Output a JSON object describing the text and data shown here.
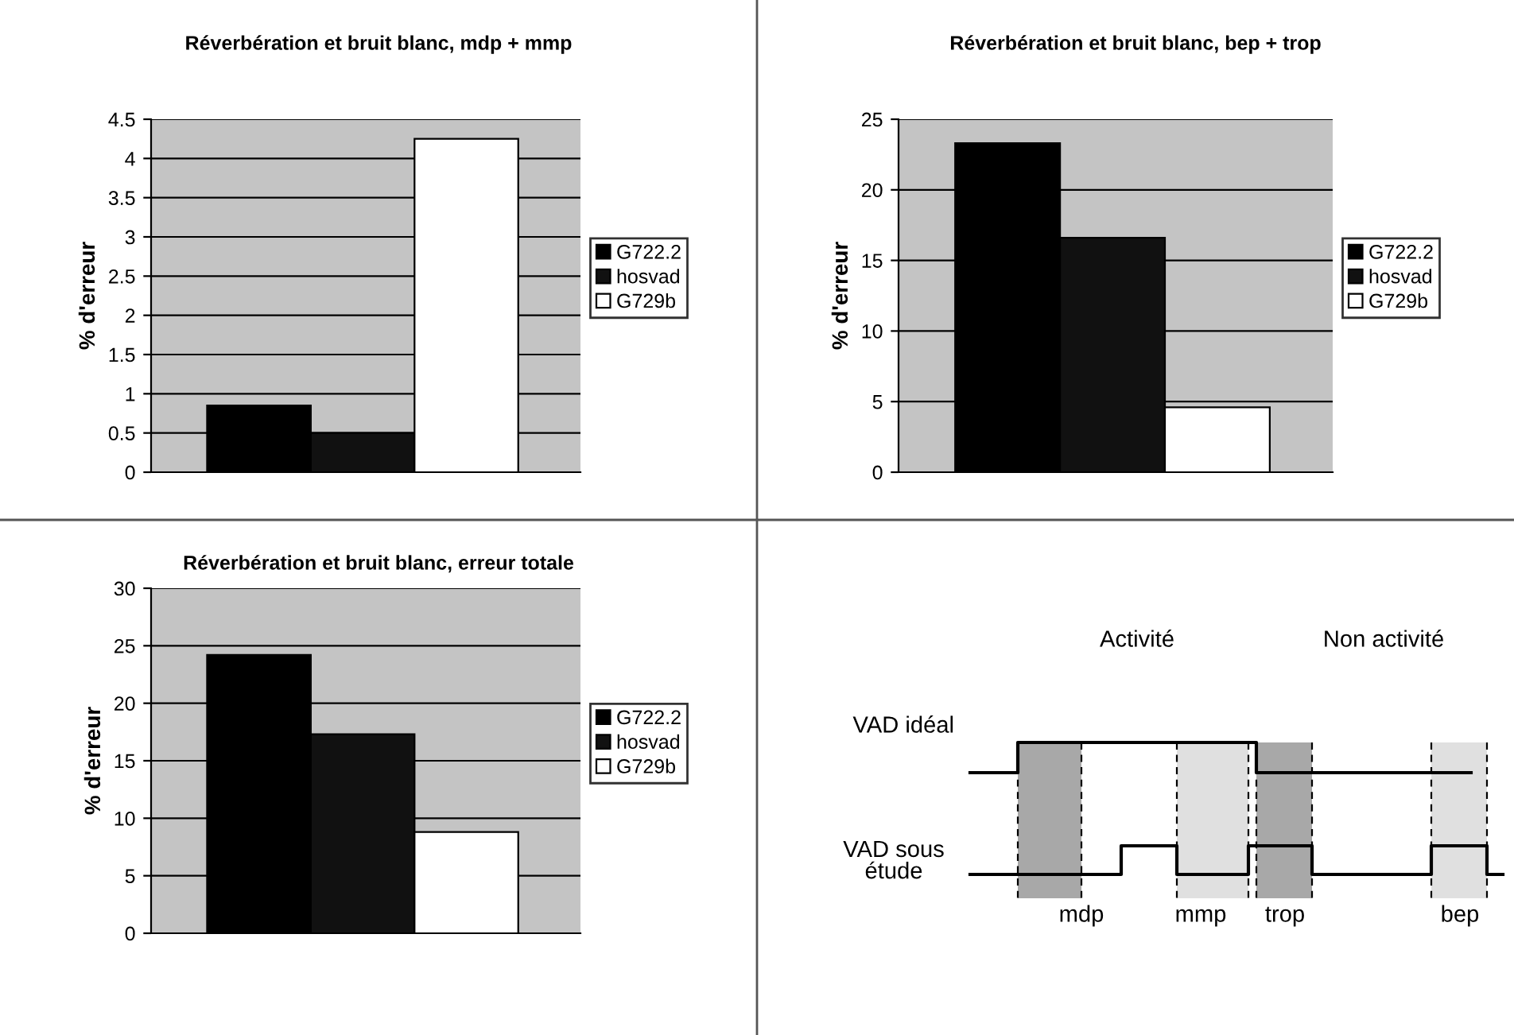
{
  "chart_data": [
    {
      "type": "bar",
      "title": "Réverbération et bruit blanc, mdp + mmp",
      "ylabel": "% d'erreur",
      "categories": [
        null
      ],
      "ylim": [
        0,
        4.5
      ],
      "yticks": [
        0,
        0.5,
        1,
        1.5,
        2,
        2.5,
        3,
        3.5,
        4,
        4.5
      ],
      "grid": "y",
      "legend": "right",
      "series": [
        {
          "name": "G722.2",
          "color": "#000000",
          "values": [
            0.85
          ]
        },
        {
          "name": "hosvad",
          "color": "#111111",
          "values": [
            0.5
          ]
        },
        {
          "name": "G729b",
          "color": "#ffffff",
          "values": [
            4.25
          ]
        }
      ]
    },
    {
      "type": "bar",
      "title": "Réverbération et bruit blanc, bep + trop",
      "ylabel": "% d'erreur",
      "categories": [
        null
      ],
      "ylim": [
        0,
        25
      ],
      "yticks": [
        0,
        5,
        10,
        15,
        20,
        25
      ],
      "grid": "y",
      "legend": "right",
      "series": [
        {
          "name": "G722.2",
          "color": "#000000",
          "values": [
            23.3
          ]
        },
        {
          "name": "hosvad",
          "color": "#111111",
          "values": [
            16.6
          ]
        },
        {
          "name": "G729b",
          "color": "#ffffff",
          "values": [
            4.6
          ]
        }
      ]
    },
    {
      "type": "bar",
      "title": "Réverbération et bruit blanc, erreur totale",
      "ylabel": "% d'erreur",
      "categories": [
        null
      ],
      "ylim": [
        0,
        30
      ],
      "yticks": [
        0,
        5,
        10,
        15,
        20,
        25,
        30
      ],
      "grid": "y",
      "legend": "right",
      "series": [
        {
          "name": "G722.2",
          "color": "#000000",
          "values": [
            24.2
          ]
        },
        {
          "name": "hosvad",
          "color": "#111111",
          "values": [
            17.3
          ]
        },
        {
          "name": "G729b",
          "color": "#ffffff",
          "values": [
            8.8
          ]
        }
      ]
    },
    {
      "type": "other",
      "annotations": [
        "Activité",
        "Non activité",
        "VAD idéal",
        "VAD sous\nétude",
        "mdp",
        "mmp",
        "trop",
        "bep"
      ]
    }
  ]
}
